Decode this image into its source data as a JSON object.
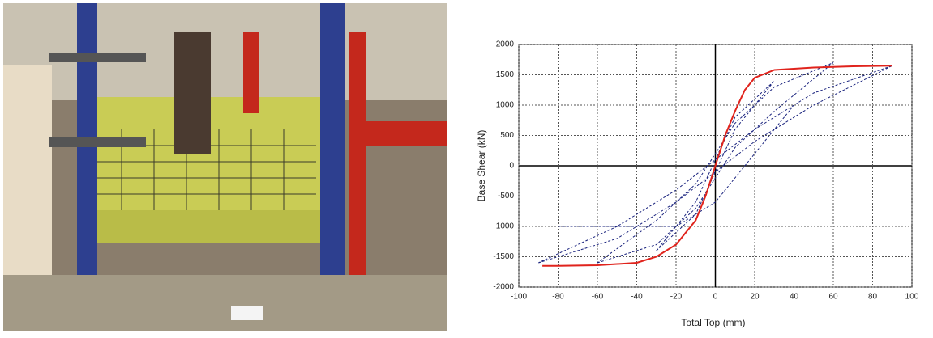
{
  "chart_data": {
    "type": "line",
    "xlabel": "Total Top (mm)",
    "ylabel": "Base Shear (kN)",
    "xlim": [
      -100,
      100
    ],
    "xticks": [
      -100,
      -80,
      -60,
      -40,
      -20,
      0,
      20,
      40,
      60,
      80,
      100
    ],
    "ylim": [
      -2000,
      2000
    ],
    "yticks": [
      -2000,
      -1500,
      -1000,
      -500,
      0,
      500,
      1000,
      1500,
      2000
    ],
    "grid": true,
    "series": [
      {
        "color": "#1a237e",
        "dashed": true,
        "x": [
          -90,
          -50,
          -20,
          0,
          20,
          50,
          90,
          50,
          20,
          0,
          -20,
          -50,
          -90
        ],
        "values": [
          -1600,
          -1200,
          -600,
          -100,
          400,
          1000,
          1650,
          1200,
          600,
          100,
          -400,
          -1000,
          -1600
        ]
      },
      {
        "color": "#1a237e",
        "dashed": true,
        "x": [
          -60,
          -30,
          -10,
          0,
          10,
          30,
          60,
          30,
          10,
          0,
          -10,
          -30,
          -60
        ],
        "values": [
          -1600,
          -1300,
          -700,
          -200,
          300,
          900,
          1700,
          1300,
          700,
          200,
          -300,
          -900,
          -1600
        ]
      },
      {
        "color": "#1a237e",
        "dashed": true,
        "x": [
          -30,
          -10,
          0,
          10,
          30,
          10,
          0,
          -10,
          -30
        ],
        "values": [
          -1400,
          -800,
          -100,
          600,
          1400,
          800,
          100,
          -600,
          -1400
        ]
      },
      {
        "color": "#1a237e",
        "dashed": true,
        "x": [
          -80,
          -20,
          0,
          20,
          40
        ],
        "values": [
          -1000,
          -1000,
          -600,
          200,
          1000
        ]
      },
      {
        "color": "#e0231c",
        "dashed": false,
        "x": [
          -88,
          -80,
          -60,
          -40,
          -30,
          -20,
          -10,
          -5,
          0,
          5,
          10,
          15,
          20,
          30,
          50,
          70,
          90
        ],
        "values": [
          -1650,
          -1650,
          -1640,
          -1600,
          -1500,
          -1300,
          -900,
          -500,
          0,
          500,
          900,
          1250,
          1450,
          1580,
          1620,
          1640,
          1650
        ]
      }
    ]
  }
}
